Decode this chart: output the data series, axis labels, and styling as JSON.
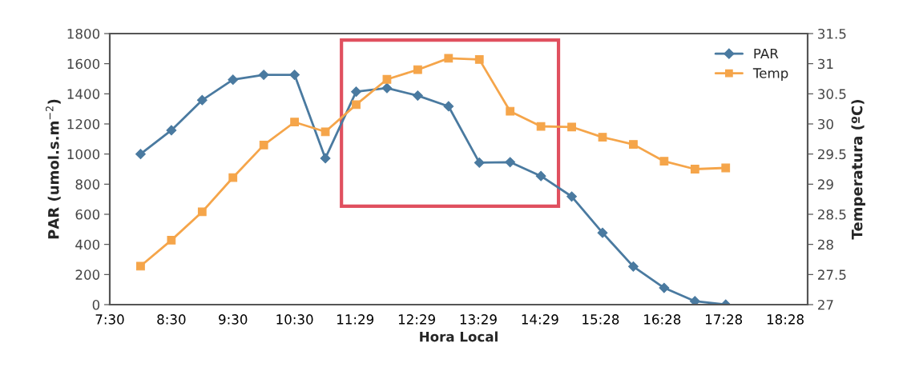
{
  "chart_data": {
    "type": "line",
    "xlabel": "Hora Local",
    "ylabel": "PAR (umol.s.m$^{−2}$)",
    "y2label": "Temperatura (ºC)",
    "x": [
      8,
      8.5,
      9,
      9.5,
      10,
      10.5,
      11,
      11.5,
      12,
      12.5,
      13,
      13.5,
      14,
      14.5,
      15,
      15.5,
      16,
      16.5,
      17,
      17.5
    ],
    "series": [
      {
        "name": "PAR",
        "color": "#4a7aa0",
        "marker": "diamond",
        "values": [
          1000,
          1158,
          1358,
          1494,
          1526,
          1526,
          972,
          1414,
          1438,
          1388,
          1317,
          943,
          946,
          854,
          718,
          477,
          253,
          111,
          23,
          0
        ]
      },
      {
        "name": "Temp",
        "color": "#f5a54a",
        "marker": "square",
        "axis": "y2",
        "values": [
          27.64,
          28.07,
          28.54,
          29.11,
          29.65,
          30.03,
          29.87,
          30.32,
          30.74,
          30.9,
          31.09,
          31.07,
          30.21,
          29.96,
          29.95,
          29.78,
          29.66,
          29.38,
          29.25,
          29.27
        ]
      }
    ],
    "xlim": [
      7.5,
      18.83
    ],
    "xticks": [
      {
        "value": 7.5,
        "label": "7:30"
      },
      {
        "value": 8.5,
        "label": "8:30"
      },
      {
        "value": 9.5,
        "label": "9:30"
      },
      {
        "value": 10.5,
        "label": "10:30"
      },
      {
        "value": 11.4833,
        "label": "11:29"
      },
      {
        "value": 12.4833,
        "label": "12:29"
      },
      {
        "value": 13.4833,
        "label": "13:29"
      },
      {
        "value": 14.4833,
        "label": "14:29"
      },
      {
        "value": 15.4667,
        "label": "15:28"
      },
      {
        "value": 16.4667,
        "label": "16:28"
      },
      {
        "value": 17.4667,
        "label": "17:28"
      },
      {
        "value": 18.4667,
        "label": "18:28"
      }
    ],
    "ylim": [
      0,
      1800
    ],
    "yticks": [
      0,
      200,
      400,
      600,
      800,
      1000,
      1200,
      1400,
      1600,
      1800
    ],
    "y2lim": [
      27,
      31.5
    ],
    "y2ticks": [
      27,
      27.5,
      28,
      28.5,
      29,
      29.5,
      30,
      30.5,
      31,
      31.5
    ],
    "grid": false,
    "legend": "top right"
  }
}
